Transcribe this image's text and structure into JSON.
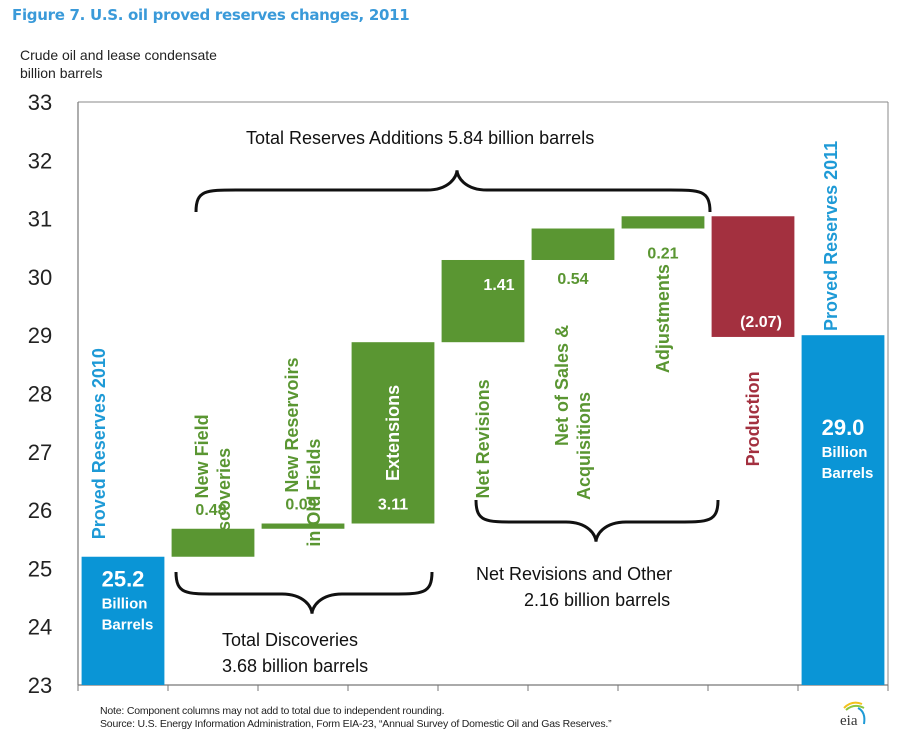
{
  "title": "Figure 7. U.S. oil proved reserves changes, 2011",
  "units": [
    "Crude oil and lease condensate",
    "billion barrels"
  ],
  "note": "Note: Component columns may not add to total due to independent rounding.",
  "source": "Source: U.S. Energy Information Administration, Form EIA-23, “Annual Survey of Domestic Oil and Gas Reserves.”",
  "logo_text": "eia",
  "colors": {
    "blue": "#0a95d6",
    "green": "#5a9632",
    "red": "#a3303f",
    "label_green": "#5a9632",
    "label_blue": "#1e9ad6",
    "label_red": "#a3303f"
  },
  "chart_data": {
    "type": "bar",
    "subtype": "waterfall",
    "title": "Figure 7. U.S. oil proved reserves changes, 2011",
    "ylabel": "Crude oil and lease condensate billion barrels",
    "xlabel": "",
    "ylim": [
      23,
      33
    ],
    "yticks": [
      23,
      24,
      25,
      26,
      27,
      28,
      29,
      30,
      31,
      32,
      33
    ],
    "grid": false,
    "bars": [
      {
        "name": "Proved Reserves 2010",
        "label_lines": [
          "Proved Reserves 2010"
        ],
        "kind": "total",
        "start": 23,
        "end": 25.2,
        "value": 25.2,
        "value_text": "25.2",
        "sub_text": [
          "Billion",
          "Barrels"
        ],
        "color": "blue"
      },
      {
        "name": "New Field Discoveries",
        "label_lines": [
          "New Field",
          "Discoveries"
        ],
        "kind": "increase",
        "start": 25.2,
        "end": 25.68,
        "value": 0.48,
        "value_text": "0.48",
        "color": "green"
      },
      {
        "name": "New Reservoirs in Old Fields",
        "label_lines": [
          "New Reservoirs",
          "in Old Fields"
        ],
        "kind": "increase",
        "start": 25.68,
        "end": 25.77,
        "value": 0.09,
        "value_text": "0.09",
        "color": "green"
      },
      {
        "name": "Extensions",
        "label_lines": [
          "Extensions"
        ],
        "kind": "increase",
        "start": 25.77,
        "end": 28.88,
        "value": 3.11,
        "value_text": "3.11",
        "color": "green"
      },
      {
        "name": "Net Revisions",
        "label_lines": [
          "Net Revisions"
        ],
        "kind": "increase",
        "start": 28.88,
        "end": 30.29,
        "value": 1.41,
        "value_text": "1.41",
        "color": "green"
      },
      {
        "name": "Net of Sales & Acquisitions",
        "label_lines": [
          "Net of Sales &",
          "Acquisitions"
        ],
        "kind": "increase",
        "start": 30.29,
        "end": 30.83,
        "value": 0.54,
        "value_text": "0.54",
        "color": "green"
      },
      {
        "name": "Adjustments",
        "label_lines": [
          "Adjustments"
        ],
        "kind": "increase",
        "start": 30.83,
        "end": 31.04,
        "value": 0.21,
        "value_text": "0.21",
        "color": "green"
      },
      {
        "name": "Production",
        "label_lines": [
          "Production"
        ],
        "kind": "decrease",
        "start": 31.04,
        "end": 28.97,
        "value": -2.07,
        "value_text": "(2.07)",
        "color": "red"
      },
      {
        "name": "Proved Reserves 2011",
        "label_lines": [
          "Proved Reserves 2011"
        ],
        "kind": "total",
        "start": 23,
        "end": 29.0,
        "value": 29.0,
        "value_text": "29.0",
        "sub_text": [
          "Billion",
          "Barrels"
        ],
        "color": "blue"
      }
    ],
    "annotations": [
      {
        "name": "total-reserves-additions",
        "lines": [
          "Total Reserves Additions    5.84 billion barrels"
        ],
        "value": 5.84,
        "spans": [
          "New Field Discoveries",
          "Adjustments"
        ]
      },
      {
        "name": "total-discoveries",
        "lines": [
          "Total Discoveries",
          "3.68 billion barrels"
        ],
        "value": 3.68,
        "spans": [
          "New Field Discoveries",
          "Extensions"
        ]
      },
      {
        "name": "net-revisions-and-other",
        "lines": [
          "Net Revisions and Other",
          "2.16 billion barrels"
        ],
        "value": 2.16,
        "spans": [
          "Net Revisions",
          "Adjustments"
        ]
      }
    ]
  }
}
